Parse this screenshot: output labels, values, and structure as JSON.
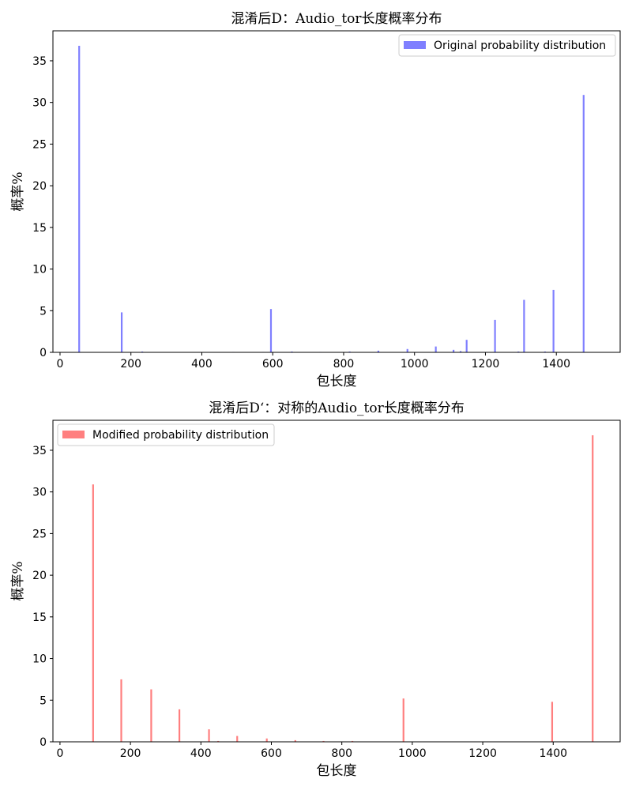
{
  "chart_data": [
    {
      "type": "bar",
      "title": "混淆后D：Audio_tor长度概率分布",
      "xlabel": "包长度",
      "ylabel": "概率%",
      "xlim": [
        -20,
        1580
      ],
      "ylim": [
        0,
        38.6
      ],
      "xticks": [
        0,
        200,
        400,
        600,
        800,
        1000,
        1200,
        1400
      ],
      "yticks": [
        0,
        5,
        10,
        15,
        20,
        25,
        30,
        35
      ],
      "grid": false,
      "legend_position": "upper right",
      "series": [
        {
          "name": "Original probability distribution",
          "color": "#0000ff",
          "alpha": 0.5,
          "x": [
            54,
            174,
            232,
            489,
            573,
            595,
            654,
            734,
            817,
            898,
            980,
            1060,
            1110,
            1130,
            1147,
            1227,
            1293,
            1309,
            1368,
            1392,
            1477
          ],
          "values": [
            36.8,
            4.8,
            0.1,
            0.05,
            0.05,
            5.2,
            0.1,
            0.05,
            0.1,
            0.2,
            0.4,
            0.7,
            0.3,
            0.15,
            1.5,
            3.9,
            0.1,
            6.3,
            0.1,
            7.5,
            30.9
          ]
        }
      ]
    },
    {
      "type": "bar",
      "title": "混淆后D‘：对称的Audio_tor长度概率分布",
      "xlabel": "包长度",
      "ylabel": "概率%",
      "xlim": [
        -20,
        1590
      ],
      "ylim": [
        0,
        38.6
      ],
      "xticks": [
        0,
        200,
        400,
        600,
        800,
        1000,
        1200,
        1400
      ],
      "yticks": [
        0,
        5,
        10,
        15,
        20,
        25,
        30,
        35
      ],
      "grid": false,
      "legend_position": "upper left",
      "series": [
        {
          "name": "Modified probability distribution",
          "color": "#ff0000",
          "alpha": 0.5,
          "x": [
            94,
            174,
            259,
            339,
            423,
            449,
            503,
            587,
            668,
            748,
            830,
            975,
            1397,
            1512
          ],
          "values": [
            30.9,
            7.5,
            6.3,
            3.9,
            1.5,
            0.1,
            0.7,
            0.4,
            0.2,
            0.1,
            0.1,
            5.2,
            4.8,
            36.8
          ]
        }
      ]
    }
  ]
}
